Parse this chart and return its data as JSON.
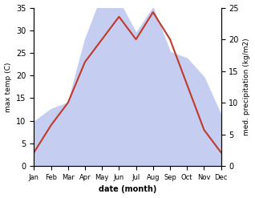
{
  "months": [
    "Jan",
    "Feb",
    "Mar",
    "Apr",
    "May",
    "Jun",
    "Jul",
    "Aug",
    "Sep",
    "Oct",
    "Nov",
    "Dec"
  ],
  "temperature": [
    3,
    9,
    14,
    23,
    28,
    33,
    28,
    34,
    28,
    18,
    8,
    3
  ],
  "precipitation": [
    7,
    9,
    10,
    20,
    27,
    26,
    21,
    25,
    18,
    17,
    14,
    8
  ],
  "temp_color": "#c0392b",
  "precip_color_fill": "#c5cef0",
  "temp_ylim": [
    0,
    35
  ],
  "precip_ylim": [
    0,
    25
  ],
  "left_yticks": [
    0,
    5,
    10,
    15,
    20,
    25,
    30,
    35
  ],
  "right_yticks": [
    0,
    5,
    10,
    15,
    20,
    25
  ],
  "xlabel": "date (month)",
  "ylabel_left": "max temp (C)",
  "ylabel_right": "med. precipitation (kg/m2)",
  "scale_factor": 1.4
}
